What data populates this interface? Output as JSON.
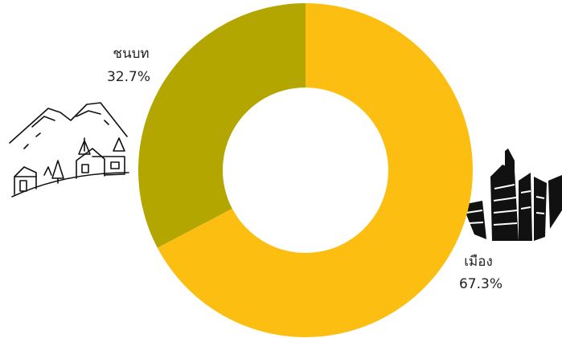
{
  "chart_data": {
    "type": "donut",
    "categories": [
      "ชนบท",
      "เมือง"
    ],
    "values": [
      32.7,
      67.3
    ],
    "value_labels": [
      "32.7%",
      "67.3%"
    ],
    "colors": [
      "#b3a600",
      "#fdbe12"
    ]
  }
}
